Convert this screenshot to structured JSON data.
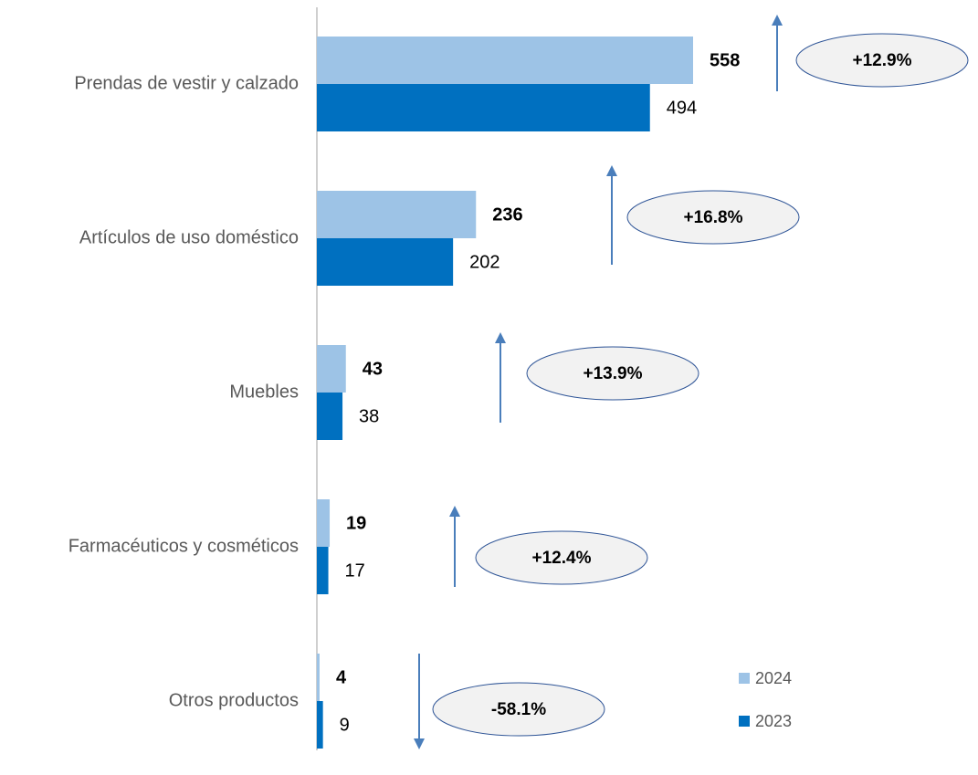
{
  "chart_data": {
    "type": "hbar",
    "categories": [
      "Prendas de vestir y calzado",
      "Artículos de uso doméstico",
      "Muebles",
      "Farmacéuticos y cosméticos",
      "Otros productos"
    ],
    "series": [
      {
        "name": "2024",
        "color": "#9dc3e6",
        "values": [
          558,
          236,
          43,
          19,
          4
        ]
      },
      {
        "name": "2023",
        "color": "#0070c0",
        "values": [
          494,
          202,
          38,
          17,
          9
        ]
      }
    ],
    "annotations": [
      "+12.9%",
      "+16.8%",
      "+13.9%",
      "+12.4%",
      "-58.1%"
    ],
    "legend": "lower right"
  }
}
